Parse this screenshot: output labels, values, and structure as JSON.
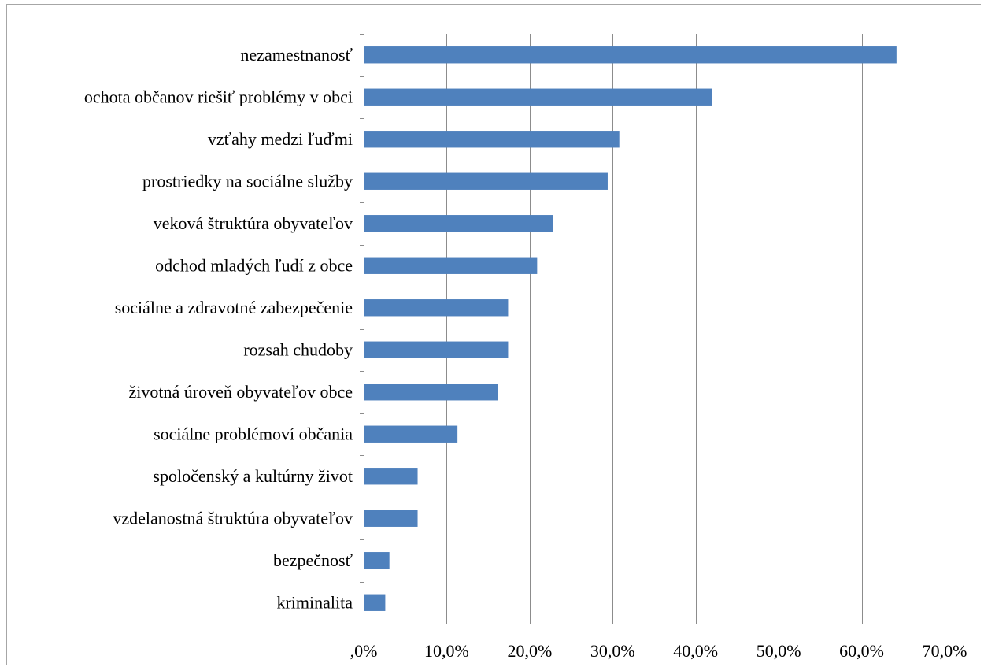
{
  "chart_data": {
    "type": "bar",
    "orientation": "horizontal",
    "categories": [
      "nezamestnanosť",
      "ochota občanov riešiť problémy v obci",
      "vzťahy medzi ľuďmi",
      "prostriedky na sociálne služby",
      "veková štruktúra obyvateľov",
      "odchod mladých ľudí z obce",
      "sociálne a zdravotné zabezpečenie",
      "rozsah chudoby",
      "životná úroveň obyvateľov obce",
      "sociálne problémoví občania",
      "spoločenský a kultúrny život",
      "vzdelanostná štruktúra obyvateľov",
      "bezpečnosť",
      "kriminalita"
    ],
    "values": [
      64.2,
      42.0,
      30.8,
      29.4,
      22.8,
      20.9,
      17.4,
      17.4,
      16.2,
      11.3,
      6.5,
      6.5,
      3.1,
      2.6
    ],
    "xlim": [
      0,
      70
    ],
    "ticks": [
      0,
      10,
      20,
      30,
      40,
      50,
      60,
      70
    ],
    "tick_labels": [
      ",0%",
      "10,0%",
      "20,0%",
      "30,0%",
      "40,0%",
      "50,0%",
      "60,0%",
      "70,0%"
    ],
    "grid": true,
    "legend": "none",
    "bar_color": "#4f81bd"
  }
}
